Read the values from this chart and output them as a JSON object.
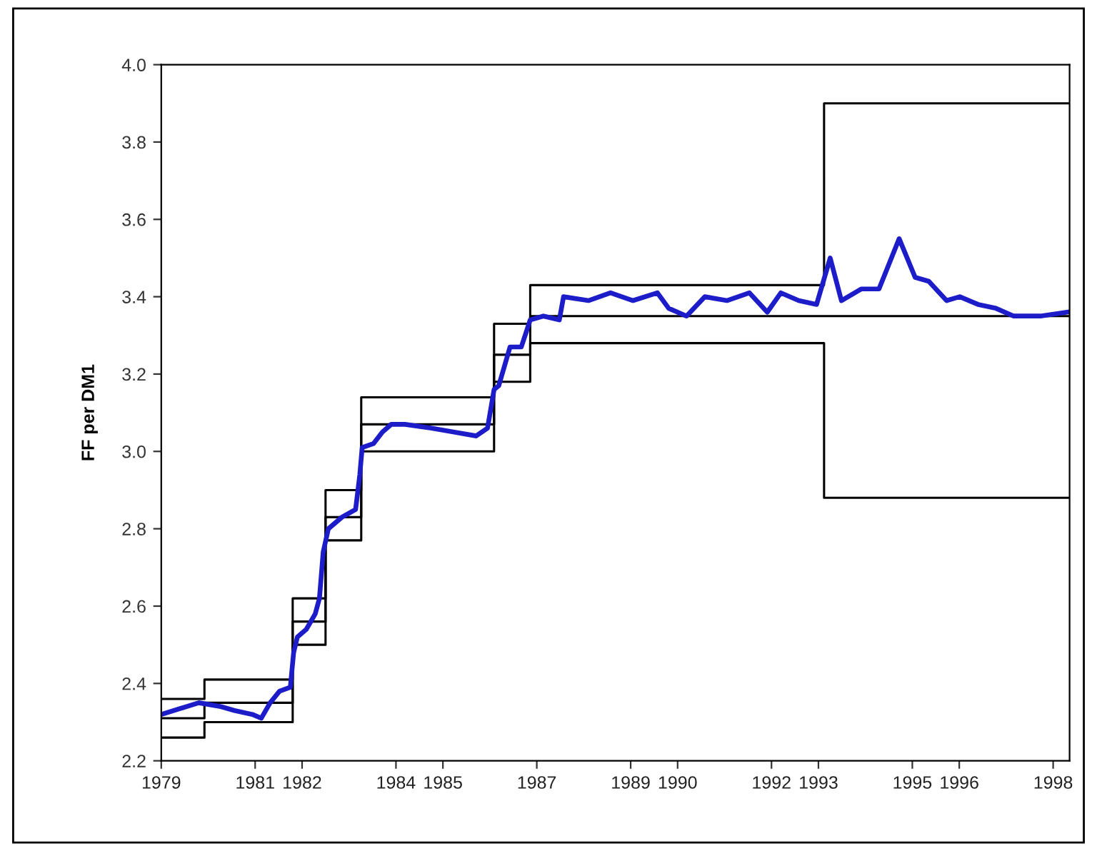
{
  "chart_data": {
    "type": "line",
    "ylabel": "FF per DM1",
    "xlim": [
      1979.0,
      1998.35
    ],
    "ylim": [
      2.2,
      4.0
    ],
    "xticks": [
      1979,
      1981,
      1982,
      1984,
      1985,
      1987,
      1989,
      1990,
      1992,
      1993,
      1995,
      1996,
      1998
    ],
    "yticks": [
      2.2,
      2.4,
      2.6,
      2.8,
      {
        "value": 3,
        "label": "3.0"
      },
      3.2,
      3.4,
      3.6,
      3.8,
      {
        "value": 4,
        "label": "4.0"
      }
    ],
    "grid": false,
    "marker": "none",
    "line_style": "solid",
    "series": [
      {
        "type": "step",
        "color": "#000000",
        "x": [
          1979.0,
          1979.92,
          1981.8,
          1982.5,
          1983.26,
          1986.09,
          1986.86,
          1993.12,
          1998.35
        ],
        "values": [
          2.36,
          2.41,
          2.62,
          2.9,
          3.14,
          3.33,
          3.43,
          3.9,
          3.9
        ]
      },
      {
        "type": "step",
        "color": "#000000",
        "x": [
          1979.0,
          1979.92,
          1981.8,
          1982.5,
          1983.26,
          1986.09,
          1986.86,
          1993.12,
          1998.35
        ],
        "values": [
          2.31,
          2.35,
          2.56,
          2.83,
          3.07,
          3.25,
          3.35,
          3.35,
          3.35
        ]
      },
      {
        "type": "step",
        "color": "#000000",
        "x": [
          1979.0,
          1979.92,
          1981.8,
          1982.5,
          1983.26,
          1986.09,
          1986.86,
          1993.12,
          1998.35
        ],
        "values": [
          2.26,
          2.3,
          2.5,
          2.77,
          3.0,
          3.18,
          3.28,
          2.88,
          2.88
        ]
      },
      {
        "color": "#1c1cc8",
        "x": [
          1979.0,
          1979.8,
          1980.27,
          1980.56,
          1980.94,
          1981.13,
          1981.32,
          1981.52,
          1981.75,
          1981.82,
          1981.9,
          1982.09,
          1982.28,
          1982.37,
          1982.45,
          1982.56,
          1982.85,
          1983.14,
          1983.23,
          1983.28,
          1983.52,
          1983.71,
          1983.9,
          1984.19,
          1984.76,
          1985.24,
          1985.71,
          1985.95,
          1986.09,
          1986.19,
          1986.43,
          1986.67,
          1986.86,
          1987.14,
          1987.48,
          1987.57,
          1988.1,
          1988.57,
          1989.05,
          1989.57,
          1989.81,
          1990.19,
          1990.58,
          1991.05,
          1991.53,
          1991.91,
          1992.2,
          1992.58,
          1992.96,
          1993.25,
          1993.49,
          1993.91,
          1994.29,
          1994.72,
          1995.06,
          1995.35,
          1995.73,
          1996.01,
          1996.4,
          1996.78,
          1997.16,
          1997.73,
          1998.3
        ],
        "values": [
          2.32,
          2.35,
          2.34,
          2.33,
          2.32,
          2.31,
          2.35,
          2.38,
          2.39,
          2.48,
          2.52,
          2.54,
          2.58,
          2.62,
          2.74,
          2.8,
          2.83,
          2.85,
          2.94,
          3.01,
          3.02,
          3.05,
          3.07,
          3.07,
          3.06,
          3.05,
          3.04,
          3.06,
          3.16,
          3.17,
          3.27,
          3.27,
          3.34,
          3.35,
          3.34,
          3.4,
          3.39,
          3.41,
          3.39,
          3.41,
          3.37,
          3.35,
          3.4,
          3.39,
          3.41,
          3.36,
          3.41,
          3.39,
          3.38,
          3.5,
          3.39,
          3.42,
          3.42,
          3.55,
          3.45,
          3.44,
          3.39,
          3.4,
          3.38,
          3.37,
          3.35,
          3.35,
          3.36
        ]
      }
    ]
  }
}
